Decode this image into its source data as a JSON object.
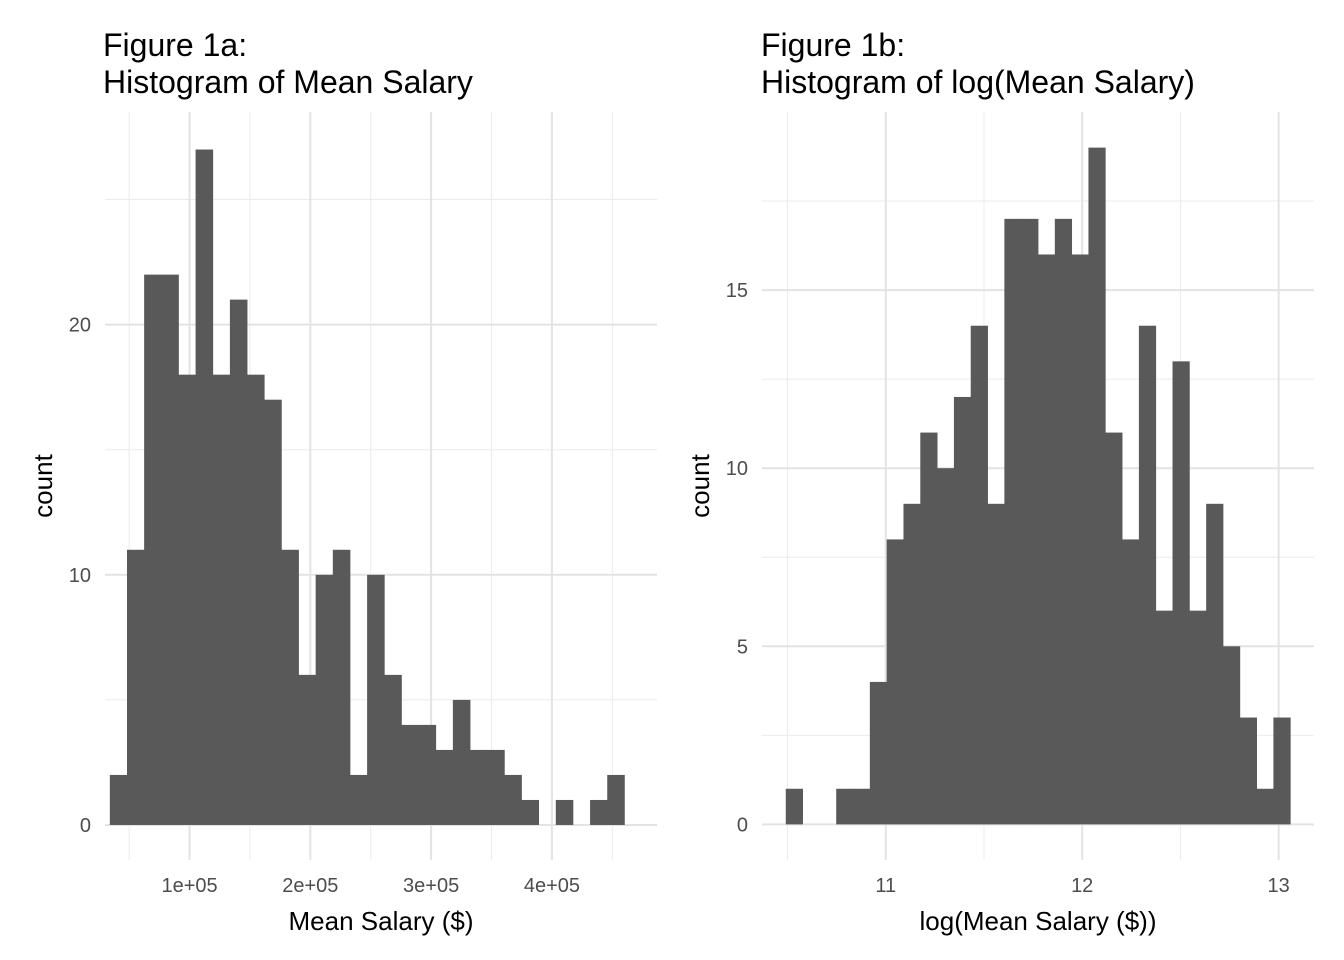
{
  "chart_data": [
    {
      "type": "bar",
      "title_line1": "Figure 1a:",
      "title_line2": "Histogram of Mean Salary",
      "xlabel": "Mean Salary ($)",
      "ylabel": "count",
      "x_ticks": [
        100000,
        200000,
        300000,
        400000
      ],
      "x_tick_labels": [
        "1e+05",
        "2e+05",
        "3e+05",
        "4e+05"
      ],
      "y_ticks": [
        0,
        10,
        20
      ],
      "y_tick_labels": [
        "0",
        "10",
        "20"
      ],
      "xlim": [
        30000,
        487000
      ],
      "ylim": [
        -1.4,
        28.5
      ],
      "grid": true,
      "bin_start": 34000,
      "bin_width": 14200,
      "values": [
        2,
        11,
        22,
        22,
        18,
        27,
        18,
        21,
        18,
        17,
        11,
        6,
        10,
        11,
        2,
        10,
        6,
        4,
        4,
        3,
        5,
        3,
        3,
        2,
        1,
        0,
        1,
        0,
        1,
        2
      ],
      "bar_color": "#595959"
    },
    {
      "type": "bar",
      "title_line1": "Figure 1b:",
      "title_line2": "Histogram of log(Mean Salary)",
      "xlabel": "log(Mean Salary ($))",
      "ylabel": "count",
      "x_ticks": [
        11,
        12,
        13
      ],
      "x_tick_labels": [
        "11",
        "12",
        "13"
      ],
      "y_ticks": [
        0,
        5,
        10,
        15
      ],
      "y_tick_labels": [
        "0",
        "5",
        "10",
        "15"
      ],
      "xlim": [
        10.37,
        13.18
      ],
      "ylim": [
        -1.0,
        20.0
      ],
      "grid": true,
      "bin_start": 10.491,
      "bin_width": 0.0856,
      "values": [
        1,
        0,
        0,
        1,
        1,
        4,
        8,
        9,
        11,
        10,
        12,
        14,
        9,
        17,
        17,
        16,
        17,
        16,
        19,
        11,
        8,
        14,
        6,
        13,
        6,
        9,
        5,
        3,
        1,
        3
      ],
      "bar_color": "#595959"
    }
  ]
}
